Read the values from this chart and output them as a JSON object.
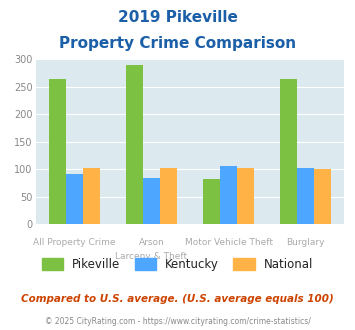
{
  "title_line1": "2019 Pikeville",
  "title_line2": "Property Crime Comparison",
  "cat_labels_top": [
    "",
    "Arson",
    "Motor Vehicle Theft",
    ""
  ],
  "cat_labels_bot": [
    "All Property Crime",
    "Larceny & Theft",
    "",
    "Burglary"
  ],
  "pikeville": [
    265,
    289,
    83,
    264
  ],
  "kentucky": [
    91,
    85,
    106,
    103
  ],
  "national": [
    102,
    102,
    102,
    101
  ],
  "pikeville_color": "#7dc142",
  "kentucky_color": "#4da6ff",
  "national_color": "#ffb347",
  "bg_color": "#dce9ef",
  "ylim": [
    0,
    300
  ],
  "yticks": [
    0,
    50,
    100,
    150,
    200,
    250,
    300
  ],
  "footnote": "Compared to U.S. average. (U.S. average equals 100)",
  "copyright": "© 2025 CityRating.com - https://www.cityrating.com/crime-statistics/",
  "title_color": "#1a5fa8",
  "footnote_color": "#cc4400",
  "copyright_color": "#888888",
  "label_color": "#aaaaaa"
}
